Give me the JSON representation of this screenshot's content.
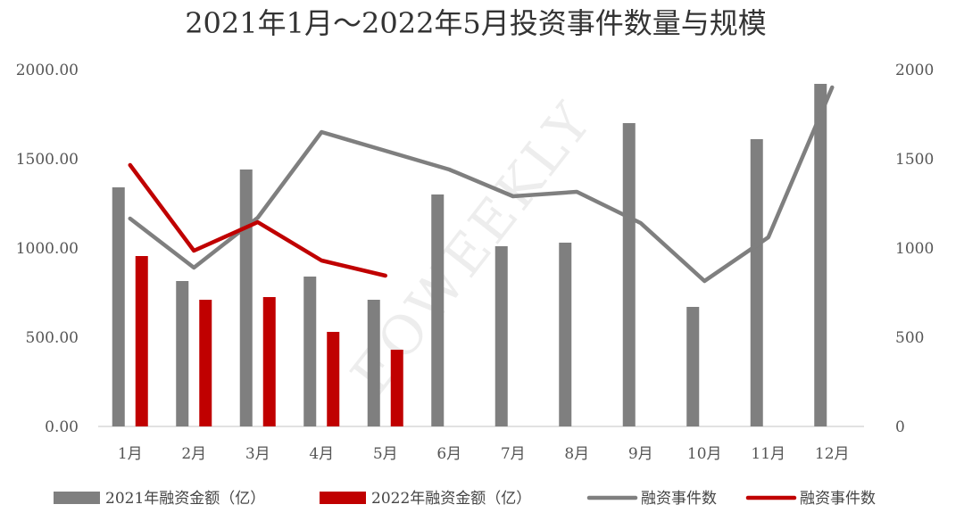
{
  "chart_data": {
    "type": "bar",
    "title": "2021年1月～2022年5月投资事件数量与规模",
    "categories": [
      "1月",
      "2月",
      "3月",
      "4月",
      "5月",
      "6月",
      "7月",
      "8月",
      "9月",
      "10月",
      "11月",
      "12月"
    ],
    "series": [
      {
        "name": "2021年融资金额（亿）",
        "kind": "bar",
        "axis": "left",
        "color": "#7f7f7f",
        "values": [
          1340,
          815,
          1440,
          840,
          710,
          1300,
          1010,
          1030,
          1700,
          670,
          1610,
          1920
        ]
      },
      {
        "name": "2022年融资金额（亿）",
        "kind": "bar",
        "axis": "left",
        "color": "#c00000",
        "values": [
          955,
          710,
          725,
          530,
          430,
          null,
          null,
          null,
          null,
          null,
          null,
          null
        ]
      },
      {
        "name": "融资事件数",
        "kind": "line",
        "axis": "right",
        "color": "#7f7f7f",
        "values": [
          1165,
          890,
          1170,
          1650,
          1545,
          1440,
          1290,
          1315,
          1140,
          815,
          1060,
          1900
        ]
      },
      {
        "name": "融资事件数",
        "kind": "line",
        "axis": "right",
        "color": "#c00000",
        "values": [
          1465,
          985,
          1145,
          930,
          845,
          null,
          null,
          null,
          null,
          null,
          null,
          null
        ]
      }
    ],
    "y_left": {
      "ylim": [
        0,
        2000
      ],
      "ticks": [
        "0.00",
        "500.00",
        "1000.00",
        "1500.00",
        "2000.00"
      ]
    },
    "y_right": {
      "ylim": [
        0,
        2000
      ],
      "ticks": [
        "0",
        "500",
        "1000",
        "1500",
        "2000"
      ]
    },
    "grid": false,
    "legend_position": "bottom",
    "watermark": "EOWEEKLY"
  }
}
